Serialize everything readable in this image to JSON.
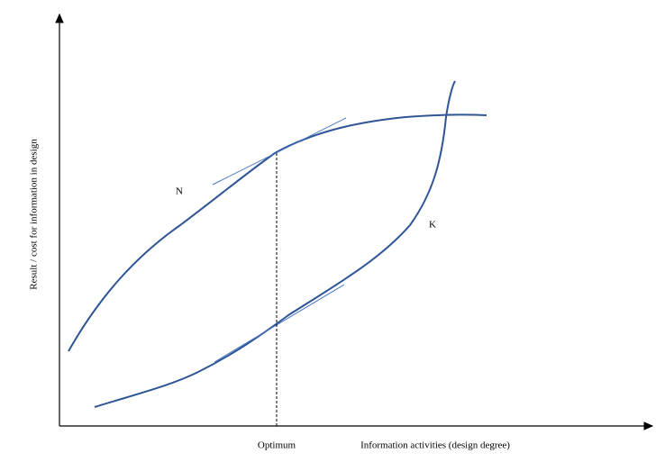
{
  "axes": {
    "y_label": "Result / cost for information in design",
    "x_label": "Information activities (design degree)"
  },
  "curves": [
    {
      "label": "N"
    },
    {
      "label": "K"
    }
  ],
  "marker": {
    "label": "Optimum"
  }
}
